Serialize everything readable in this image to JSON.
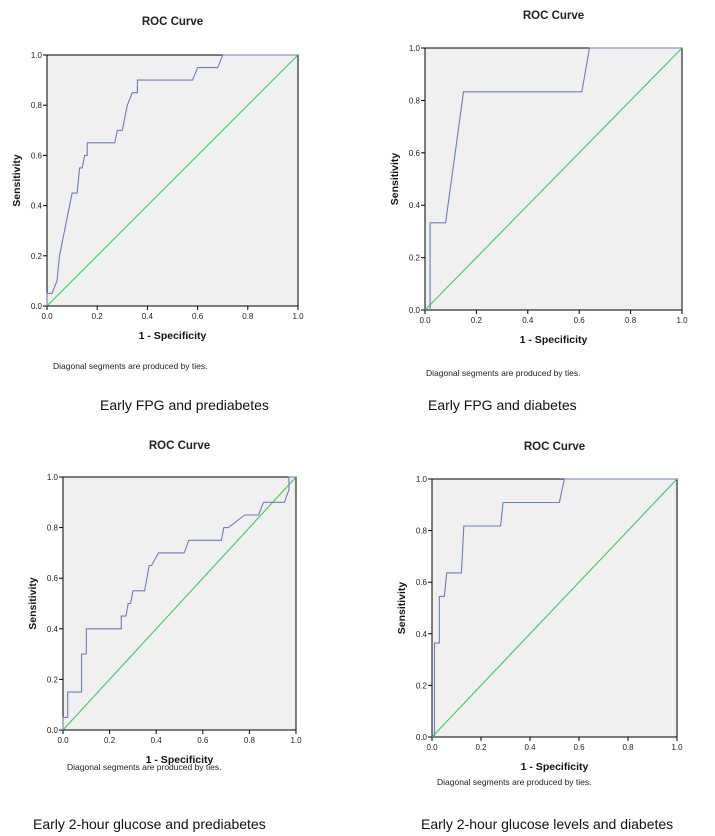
{
  "chart_data": [
    {
      "type": "line",
      "title": "ROC Curve",
      "xlabel": "1 - Specificity",
      "ylabel": "Sensitivity",
      "xlim": [
        0,
        1
      ],
      "ylim": [
        0,
        1
      ],
      "x_ticks": [
        "0.0",
        "0.2",
        "0.4",
        "0.6",
        "0.8",
        "1.0"
      ],
      "y_ticks": [
        "0.0",
        "0.2",
        "0.4",
        "0.6",
        "0.8",
        "1.0"
      ],
      "note": "Diagonal segments are produced by ties.",
      "caption": "Early FPG and prediabetes",
      "series": [
        {
          "color": "#6f7bbf",
          "points": [
            [
              0,
              0
            ],
            [
              0,
              0.05
            ],
            [
              0.02,
              0.05
            ],
            [
              0.04,
              0.1
            ],
            [
              0.05,
              0.2
            ],
            [
              0.1,
              0.45
            ],
            [
              0.12,
              0.45
            ],
            [
              0.13,
              0.55
            ],
            [
              0.14,
              0.55
            ],
            [
              0.15,
              0.6
            ],
            [
              0.16,
              0.6
            ],
            [
              0.16,
              0.65
            ],
            [
              0.27,
              0.65
            ],
            [
              0.28,
              0.7
            ],
            [
              0.3,
              0.7
            ],
            [
              0.32,
              0.8
            ],
            [
              0.34,
              0.85
            ],
            [
              0.36,
              0.85
            ],
            [
              0.36,
              0.9
            ],
            [
              0.58,
              0.9
            ],
            [
              0.6,
              0.95
            ],
            [
              0.68,
              0.95
            ],
            [
              0.7,
              1.0
            ],
            [
              1,
              1
            ]
          ]
        },
        {
          "color": "#43c95c",
          "points": [
            [
              0,
              0
            ],
            [
              1,
              1
            ]
          ]
        }
      ]
    },
    {
      "type": "line",
      "title": "ROC Curve",
      "xlabel": "1 - Specificity",
      "ylabel": "Sensitivity",
      "xlim": [
        0,
        1
      ],
      "ylim": [
        0,
        1
      ],
      "x_ticks": [
        "0.0",
        "0.2",
        "0.4",
        "0.6",
        "0.8",
        "1.0"
      ],
      "y_ticks": [
        "0.0",
        "0.2",
        "0.4",
        "0.6",
        "0.8",
        "1.0"
      ],
      "note": "Diagonal segments are produced by ties.",
      "caption": "Early FPG and diabetes",
      "series": [
        {
          "color": "#6f7bbf",
          "points": [
            [
              0.02,
              0
            ],
            [
              0.02,
              0.333
            ],
            [
              0.08,
              0.333
            ],
            [
              0.15,
              0.833
            ],
            [
              0.61,
              0.833
            ],
            [
              0.64,
              1.0
            ],
            [
              1,
              1
            ]
          ]
        },
        {
          "color": "#43c95c",
          "points": [
            [
              0,
              0
            ],
            [
              1,
              1
            ]
          ]
        }
      ]
    },
    {
      "type": "line",
      "title": "ROC Curve",
      "xlabel": "1 - Specificity",
      "ylabel": "Sensitivity",
      "xlim": [
        0,
        1
      ],
      "ylim": [
        0,
        1
      ],
      "x_ticks": [
        "0.0",
        "0.2",
        "0.4",
        "0.6",
        "0.8",
        "1.0"
      ],
      "y_ticks": [
        "0.0",
        "0.2",
        "0.4",
        "0.6",
        "0.8",
        "1.0"
      ],
      "note": "Diagonal segments are produced by ties.",
      "caption": "Early 2-hour glucose and prediabetes",
      "series": [
        {
          "color": "#6f7bbf",
          "points": [
            [
              0,
              0
            ],
            [
              0,
              0.05
            ],
            [
              0.02,
              0.05
            ],
            [
              0.02,
              0.15
            ],
            [
              0.08,
              0.15
            ],
            [
              0.08,
              0.3
            ],
            [
              0.1,
              0.3
            ],
            [
              0.1,
              0.4
            ],
            [
              0.25,
              0.4
            ],
            [
              0.25,
              0.45
            ],
            [
              0.27,
              0.45
            ],
            [
              0.28,
              0.5
            ],
            [
              0.29,
              0.5
            ],
            [
              0.3,
              0.55
            ],
            [
              0.35,
              0.55
            ],
            [
              0.36,
              0.6
            ],
            [
              0.37,
              0.65
            ],
            [
              0.38,
              0.65
            ],
            [
              0.41,
              0.7
            ],
            [
              0.52,
              0.7
            ],
            [
              0.54,
              0.75
            ],
            [
              0.68,
              0.75
            ],
            [
              0.69,
              0.8
            ],
            [
              0.71,
              0.8
            ],
            [
              0.78,
              0.85
            ],
            [
              0.84,
              0.85
            ],
            [
              0.86,
              0.9
            ],
            [
              0.95,
              0.9
            ],
            [
              0.97,
              0.95
            ],
            [
              0.97,
              1.0
            ],
            [
              1,
              1
            ]
          ]
        },
        {
          "color": "#43c95c",
          "points": [
            [
              0,
              0
            ],
            [
              1,
              1
            ]
          ]
        }
      ]
    },
    {
      "type": "line",
      "title": "ROC Curve",
      "xlabel": "1 - Specificity",
      "ylabel": "Sensitivity",
      "xlim": [
        0,
        1
      ],
      "ylim": [
        0,
        1
      ],
      "x_ticks": [
        "0.0",
        "0.2",
        "0.4",
        "0.6",
        "0.8",
        "1.0"
      ],
      "y_ticks": [
        "0.0",
        "0.2",
        "0.4",
        "0.6",
        "0.8",
        "1.0"
      ],
      "note": "Diagonal segments are produced by ties.",
      "caption": "Early 2-hour glucose levels and diabetes",
      "series": [
        {
          "color": "#6f7bbf",
          "points": [
            [
              0.01,
              0
            ],
            [
              0.01,
              0.364
            ],
            [
              0.03,
              0.364
            ],
            [
              0.03,
              0.545
            ],
            [
              0.05,
              0.545
            ],
            [
              0.06,
              0.636
            ],
            [
              0.12,
              0.636
            ],
            [
              0.13,
              0.818
            ],
            [
              0.28,
              0.818
            ],
            [
              0.29,
              0.909
            ],
            [
              0.52,
              0.909
            ],
            [
              0.54,
              1.0
            ],
            [
              1,
              1
            ]
          ]
        },
        {
          "color": "#43c95c",
          "points": [
            [
              0,
              0
            ],
            [
              1,
              1
            ]
          ]
        }
      ]
    }
  ]
}
